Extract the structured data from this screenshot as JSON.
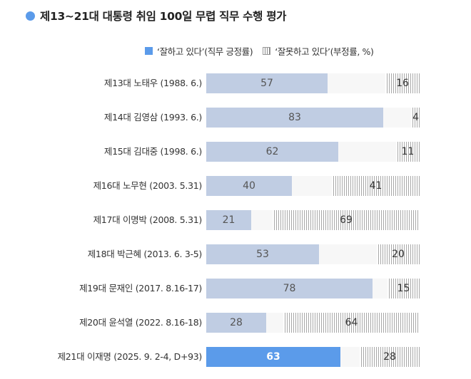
{
  "title": "제13~21대 대통령 취임 100일 무렵 직무 수행 평가",
  "legend": {
    "positive": "‘잘하고 있다’(직무 긍정률)",
    "negative": "‘잘못하고 있다’(부정률, %)"
  },
  "colors": {
    "positive": "#c0cde3",
    "positive_current": "#5b9bea",
    "negative_hatch": "#a8a8a8",
    "track": "#f7f7f7"
  },
  "rows": [
    {
      "label": "제13대 노태우 (1988. 6.)",
      "positive": 57,
      "negative": 16
    },
    {
      "label": "제14대 김영삼 (1993. 6.)",
      "positive": 83,
      "negative": 4
    },
    {
      "label": "제15대 김대중 (1998. 6.)",
      "positive": 62,
      "negative": 11
    },
    {
      "label": "제16대 노무현 (2003. 5.31)",
      "positive": 40,
      "negative": 41
    },
    {
      "label": "제17대 이명박 (2008. 5.31)",
      "positive": 21,
      "negative": 69
    },
    {
      "label": "제18대 박근혜 (2013. 6. 3-5)",
      "positive": 53,
      "negative": 20
    },
    {
      "label": "제19대 문재인 (2017. 8.16-17)",
      "positive": 78,
      "negative": 15
    },
    {
      "label": "제20대 윤석열 (2022. 8.16-18)",
      "positive": 28,
      "negative": 64
    },
    {
      "label": "제21대 이재명 (2025. 9. 2-4, D+93)",
      "positive": 63,
      "negative": 28
    }
  ],
  "chart_data": {
    "type": "bar",
    "orientation": "horizontal",
    "stacked": "diverging-ends",
    "title": "제13~21대 대통령 취임 100일 무렵 직무 수행 평가",
    "categories": [
      "제13대 노태우 (1988. 6.)",
      "제14대 김영삼 (1993. 6.)",
      "제15대 김대중 (1998. 6.)",
      "제16대 노무현 (2003. 5.31)",
      "제17대 이명박 (2008. 5.31)",
      "제18대 박근혜 (2013. 6. 3-5)",
      "제19대 문재인 (2017. 8.16-17)",
      "제20대 윤석열 (2022. 8.16-18)",
      "제21대 이재명 (2025. 9. 2-4, D+93)"
    ],
    "series": [
      {
        "name": "‘잘하고 있다’(직무 긍정률)",
        "values": [
          57,
          83,
          62,
          40,
          21,
          53,
          78,
          28,
          63
        ]
      },
      {
        "name": "‘잘못하고 있다’(부정률, %)",
        "values": [
          16,
          4,
          11,
          41,
          69,
          20,
          15,
          64,
          28
        ]
      }
    ],
    "xlabel": "",
    "ylabel": "",
    "xlim": [
      0,
      100
    ],
    "unit": "%",
    "grid": false,
    "legend_position": "top-right",
    "highlight": "제21대 이재명 (2025. 9. 2-4, D+93)"
  }
}
